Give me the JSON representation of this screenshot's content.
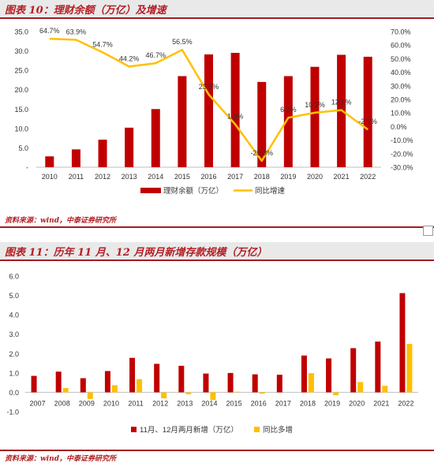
{
  "figure1": {
    "title": "图表 10：理财余额（万亿）及增速",
    "source": "资料来源：wind，中泰证券研究所"
  },
  "figure2": {
    "title": "图表 11：历年 11 月、12 月两月新增存款规模（万亿）",
    "source": "资料来源：wind，中泰证券研究所"
  },
  "colors": {
    "bar": "#c00000",
    "line": "#ffc000",
    "accent": "#b41f24"
  },
  "chart_data": [
    {
      "type": "bar",
      "categories": [
        "2010",
        "2011",
        "2012",
        "2013",
        "2014",
        "2015",
        "2016",
        "2017",
        "2018",
        "2019",
        "2020",
        "2021",
        "2022"
      ],
      "series": [
        {
          "name": "理财余额（万亿）",
          "type": "bar",
          "axis": "left",
          "values": [
            2.8,
            4.6,
            7.1,
            10.2,
            15.0,
            23.5,
            29.1,
            29.5,
            22.0,
            23.5,
            25.9,
            29.0,
            28.5
          ]
        },
        {
          "name": "同比增速",
          "type": "line",
          "axis": "right",
          "values": [
            64.7,
            63.9,
            54.7,
            44.2,
            46.7,
            56.5,
            23.6,
            1.6,
            -25.3,
            6.5,
            10.2,
            12.1,
            -2.2
          ],
          "labels": [
            "64.7%",
            "63.9%",
            "54.7%",
            "44.2%",
            "46.7%",
            "56.5%",
            "23.6%",
            "1.6%",
            "-25.3%",
            "6.5%",
            "10.2%",
            "12.1%",
            "-2.2%"
          ]
        }
      ],
      "y_left": {
        "ticks": [
          "35.0",
          "30.0",
          "25.0",
          "20.0",
          "15.0",
          "10.0",
          "5.0",
          "-"
        ],
        "range": [
          0,
          35
        ]
      },
      "y_right": {
        "ticks": [
          "70.0%",
          "60.0%",
          "50.0%",
          "40.0%",
          "30.0%",
          "20.0%",
          "10.0%",
          "0.0%",
          "-10.0%",
          "-20.0%",
          "-30.0%"
        ],
        "range": [
          -30,
          70
        ]
      },
      "legend": [
        "理财余额（万亿）",
        "同比增速"
      ],
      "legend_position": "bottom"
    },
    {
      "type": "bar",
      "categories": [
        "2007",
        "2008",
        "2009",
        "2010",
        "2011",
        "2012",
        "2013",
        "2014",
        "2015",
        "2016",
        "2017",
        "2018",
        "2019",
        "2020",
        "2021",
        "2022"
      ],
      "series": [
        {
          "name": "11月、12月两月新增（万亿）",
          "values": [
            0.85,
            1.07,
            0.73,
            1.1,
            1.78,
            1.47,
            1.37,
            0.97,
            1.0,
            0.93,
            0.91,
            1.9,
            1.75,
            2.28,
            2.62,
            5.12
          ]
        },
        {
          "name": "同比多增",
          "values": [
            null,
            0.22,
            -0.34,
            0.37,
            0.68,
            -0.31,
            -0.1,
            -0.4,
            0.03,
            -0.07,
            null,
            0.99,
            -0.15,
            0.53,
            0.34,
            2.5
          ]
        }
      ],
      "y": {
        "ticks": [
          "6.0",
          "5.0",
          "4.0",
          "3.0",
          "2.0",
          "1.0",
          "0.0",
          "-1.0"
        ],
        "range": [
          -1,
          6
        ]
      },
      "legend": [
        "11月、12月两月新增（万亿）",
        "同比多增"
      ],
      "legend_position": "bottom"
    }
  ]
}
